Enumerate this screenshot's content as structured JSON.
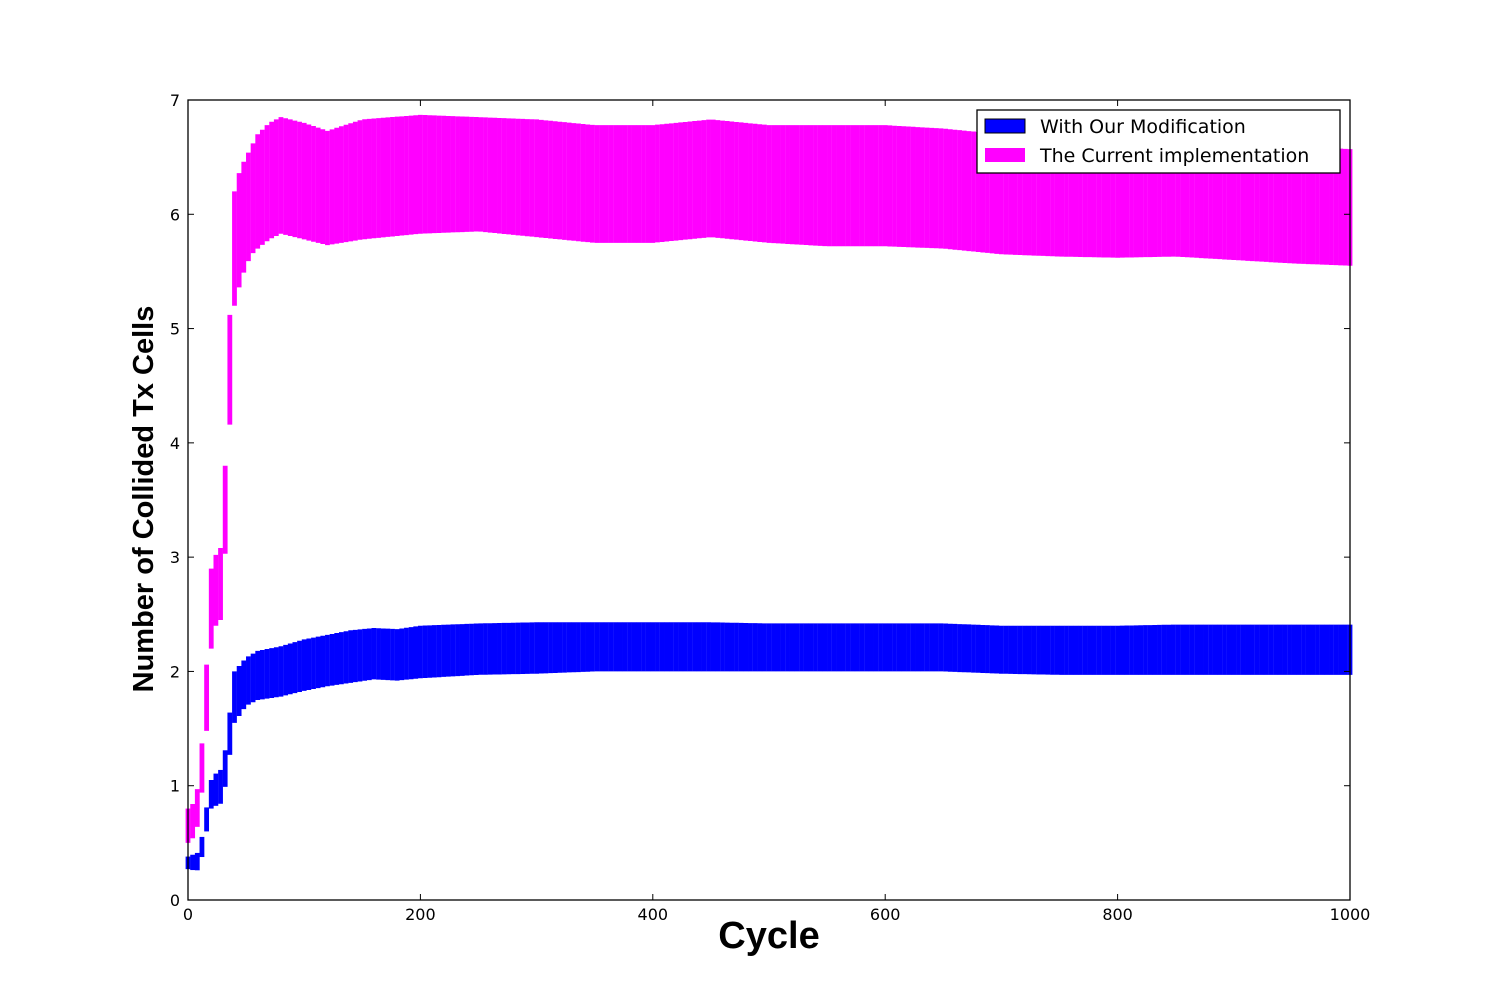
{
  "chart_data": {
    "type": "bar",
    "xlabel": "Cycle",
    "ylabel": "Number of Collided Tx Cells",
    "xlim": [
      0,
      1000
    ],
    "ylim": [
      0,
      7
    ],
    "xticks": [
      "0",
      "200",
      "400",
      "600",
      "800",
      "1000"
    ],
    "yticks": [
      "0",
      "1",
      "2",
      "3",
      "4",
      "5",
      "6",
      "7"
    ],
    "legend": "top-right",
    "grid": false,
    "series": [
      {
        "name": "With Our Modification",
        "color": "#0000ff",
        "x": [
          0,
          5,
          10,
          15,
          20,
          25,
          30,
          35,
          40,
          50,
          60,
          80,
          100,
          120,
          140,
          160,
          180,
          200,
          250,
          300,
          350,
          400,
          450,
          500,
          550,
          600,
          650,
          700,
          750,
          800,
          850,
          900,
          950,
          1000
        ],
        "lower": [
          0.27,
          0.26,
          0.26,
          0.55,
          0.8,
          0.83,
          0.85,
          1.2,
          1.55,
          1.7,
          1.75,
          1.78,
          1.83,
          1.87,
          1.9,
          1.93,
          1.92,
          1.94,
          1.97,
          1.98,
          2.0,
          2.0,
          2.0,
          2.0,
          2.0,
          2.0,
          2.0,
          1.98,
          1.97,
          1.97,
          1.97,
          1.97,
          1.97,
          1.97
        ],
        "upper": [
          0.38,
          0.4,
          0.42,
          0.75,
          1.05,
          1.12,
          1.15,
          1.55,
          2.0,
          2.12,
          2.18,
          2.22,
          2.28,
          2.32,
          2.36,
          2.38,
          2.37,
          2.4,
          2.42,
          2.43,
          2.43,
          2.43,
          2.43,
          2.42,
          2.42,
          2.42,
          2.42,
          2.4,
          2.4,
          2.4,
          2.41,
          2.41,
          2.41,
          2.41
        ]
      },
      {
        "name": "The Current implementation",
        "color": "#ff00ff",
        "x": [
          0,
          5,
          10,
          15,
          20,
          25,
          30,
          35,
          40,
          45,
          50,
          55,
          60,
          70,
          80,
          100,
          120,
          150,
          200,
          250,
          300,
          350,
          400,
          450,
          500,
          550,
          600,
          650,
          700,
          750,
          800,
          850,
          900,
          950,
          1000
        ],
        "lower": [
          0.5,
          0.55,
          0.7,
          1.3,
          2.2,
          2.45,
          2.45,
          3.9,
          5.2,
          5.4,
          5.55,
          5.65,
          5.7,
          5.78,
          5.83,
          5.78,
          5.73,
          5.78,
          5.83,
          5.85,
          5.8,
          5.75,
          5.75,
          5.8,
          5.75,
          5.72,
          5.72,
          5.7,
          5.65,
          5.63,
          5.62,
          5.63,
          5.6,
          5.57,
          5.55
        ],
        "upper": [
          0.8,
          0.85,
          1.05,
          1.85,
          2.9,
          3.05,
          3.1,
          4.85,
          6.2,
          6.4,
          6.5,
          6.6,
          6.7,
          6.8,
          6.85,
          6.8,
          6.73,
          6.83,
          6.87,
          6.85,
          6.83,
          6.78,
          6.78,
          6.83,
          6.78,
          6.78,
          6.78,
          6.75,
          6.7,
          6.68,
          6.65,
          6.65,
          6.62,
          6.6,
          6.57
        ]
      }
    ]
  }
}
